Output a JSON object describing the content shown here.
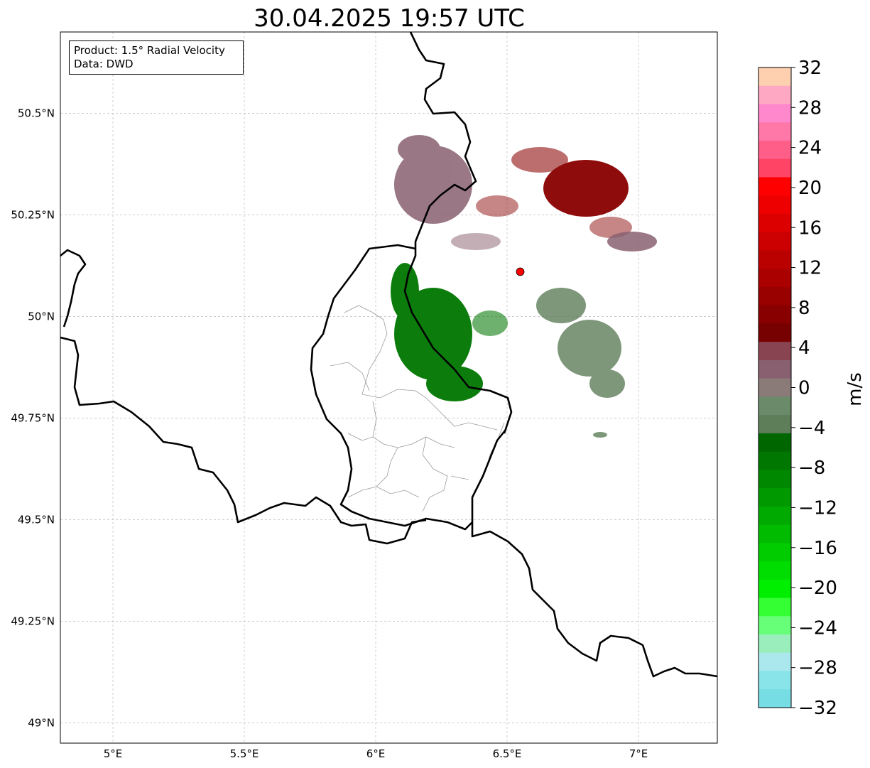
{
  "title": "30.04.2025 19:57 UTC",
  "info": {
    "product_line": "Product: 1.5° Radial Velocity",
    "data_line": "Data: DWD"
  },
  "map": {
    "lon_range": [
      4.8,
      7.3
    ],
    "lat_range": [
      48.95,
      50.7
    ],
    "lon_ticks": [
      {
        "value": 5.0,
        "label": "5°E"
      },
      {
        "value": 5.5,
        "label": "5.5°E"
      },
      {
        "value": 6.0,
        "label": "6°E"
      },
      {
        "value": 6.5,
        "label": "6.5°E"
      },
      {
        "value": 7.0,
        "label": "7°E"
      }
    ],
    "lat_ticks": [
      {
        "value": 50.5,
        "label": "50.5°N"
      },
      {
        "value": 50.25,
        "label": "50.25°N"
      },
      {
        "value": 50.0,
        "label": "50°N"
      },
      {
        "value": 49.75,
        "label": "49.75°N"
      },
      {
        "value": 49.5,
        "label": "49.5°N"
      },
      {
        "value": 49.25,
        "label": "49.25°N"
      },
      {
        "value": 49.0,
        "label": "49°N"
      }
    ],
    "radar_site": {
      "lon": 6.55,
      "lat": 50.11,
      "color": "#ff0000"
    },
    "gridline_style": "dashed",
    "country_border_color": "#000000",
    "region_border_color": "#9a9a9a"
  },
  "colorbar": {
    "label": "m/s",
    "range": [
      -32,
      32
    ],
    "tick_labels": [
      "32",
      "28",
      "24",
      "20",
      "16",
      "12",
      "8",
      "4",
      "0",
      "−4",
      "−8",
      "−12",
      "−16",
      "−20",
      "−24",
      "−28",
      "−32"
    ],
    "bands_top_to_bottom": [
      "#ffd0b0",
      "#ffa8c4",
      "#ff88cc",
      "#ff78a8",
      "#ff5e88",
      "#ff4466",
      "#ff0000",
      "#ee0000",
      "#dd0000",
      "#cc0000",
      "#bb0000",
      "#aa0000",
      "#990000",
      "#880000",
      "#770000",
      "#884450",
      "#886070",
      "#8a7a78",
      "#6a8a6a",
      "#5e7e5a",
      "#006600",
      "#007700",
      "#008800",
      "#009900",
      "#00aa00",
      "#00bb00",
      "#00cc00",
      "#00dd00",
      "#00ee00",
      "#33ff33",
      "#66ff77",
      "#99eebb",
      "#aae8ee",
      "#88e4e8",
      "#77dde4"
    ]
  }
}
